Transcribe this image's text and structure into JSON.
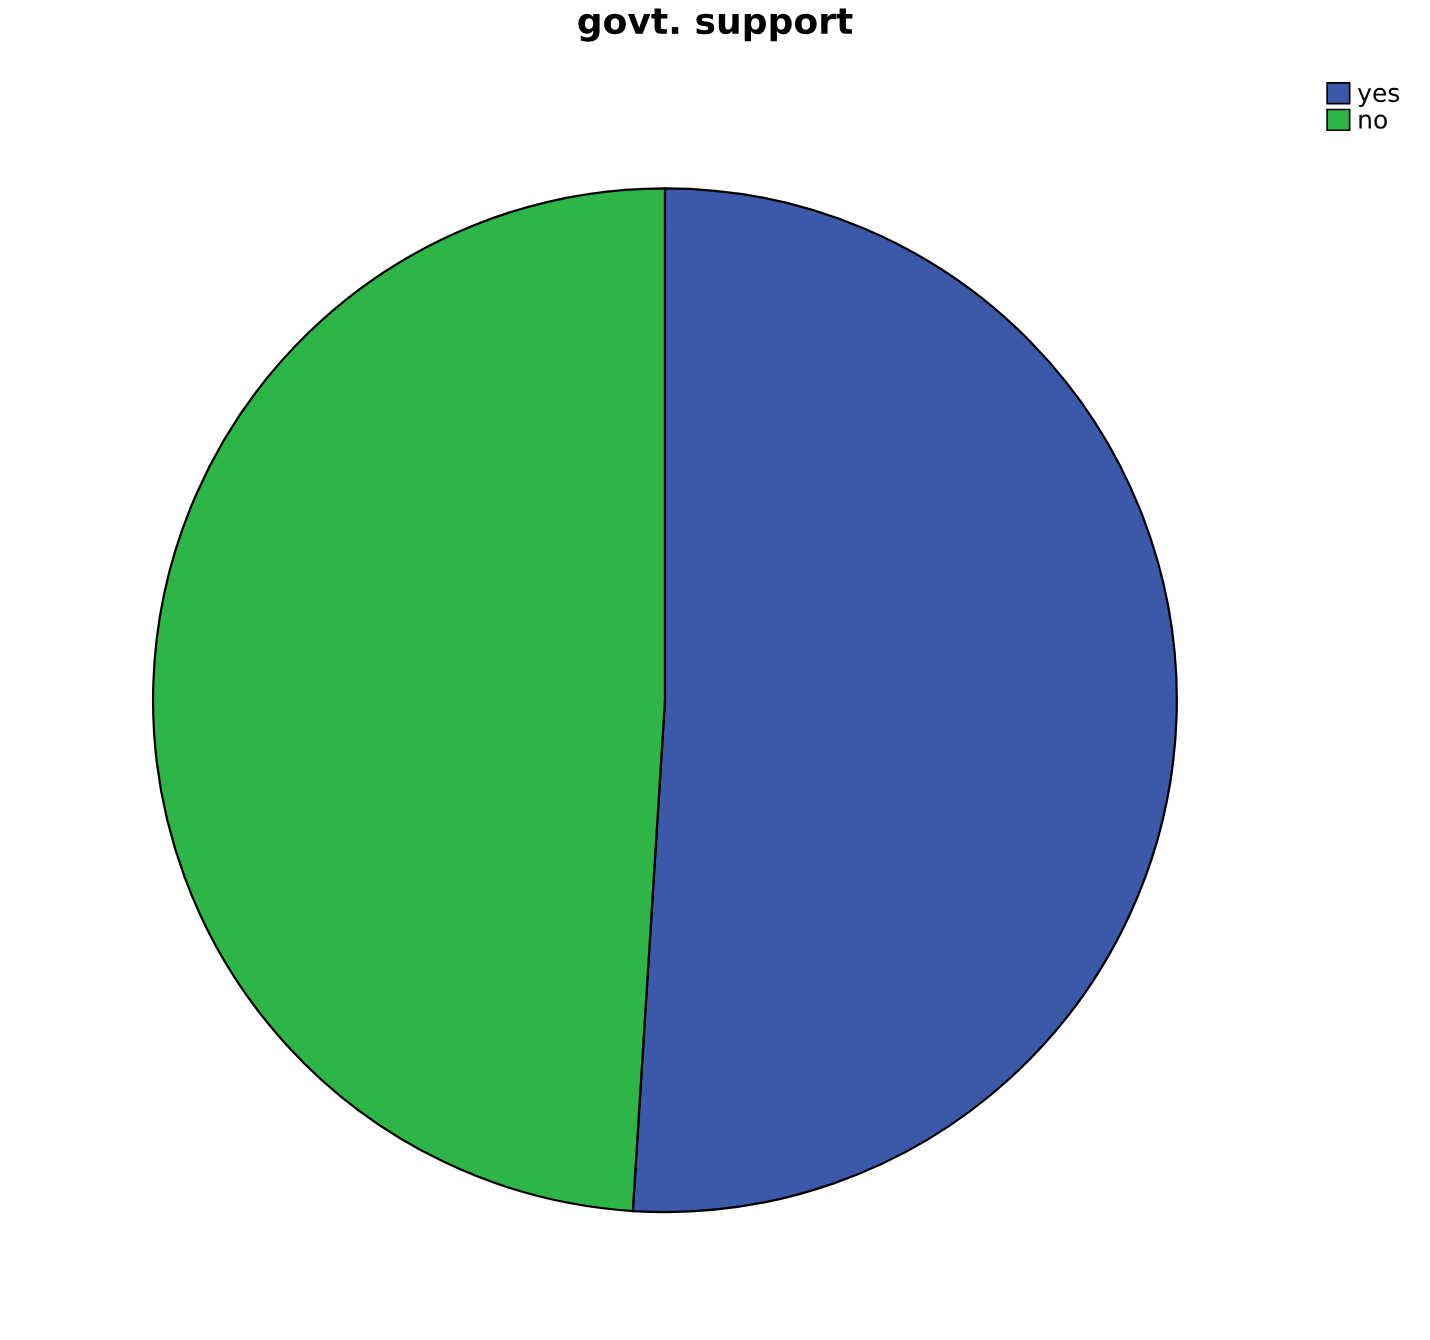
{
  "chart_data": {
    "type": "pie",
    "title": "govt. support",
    "categories": [
      "yes",
      "no"
    ],
    "values": [
      51,
      49
    ],
    "colors": [
      "#3c58a8",
      "#2db547"
    ],
    "legend": "top right"
  }
}
